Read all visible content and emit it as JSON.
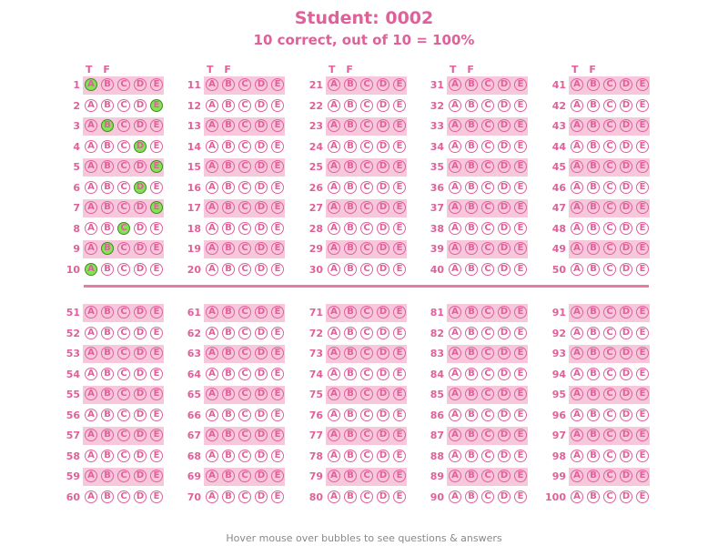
{
  "header": {
    "title": "Student: 0002",
    "subtitle": "10 correct, out of 10 = 100%"
  },
  "tf_label": "T F",
  "choices": [
    "A",
    "B",
    "C",
    "D",
    "E"
  ],
  "answers": {
    "1": "A",
    "2": "E",
    "3": "B",
    "4": "D",
    "5": "E",
    "6": "D",
    "7": "E",
    "8": "C",
    "9": "B",
    "10": "A"
  },
  "question_count": 100,
  "footer": "Hover mouse over bubbles to see questions & answers",
  "colors": {
    "accent": "#e0609a",
    "band": "#f7c8dc",
    "correct": "#88e05a",
    "footer": "#888888"
  }
}
